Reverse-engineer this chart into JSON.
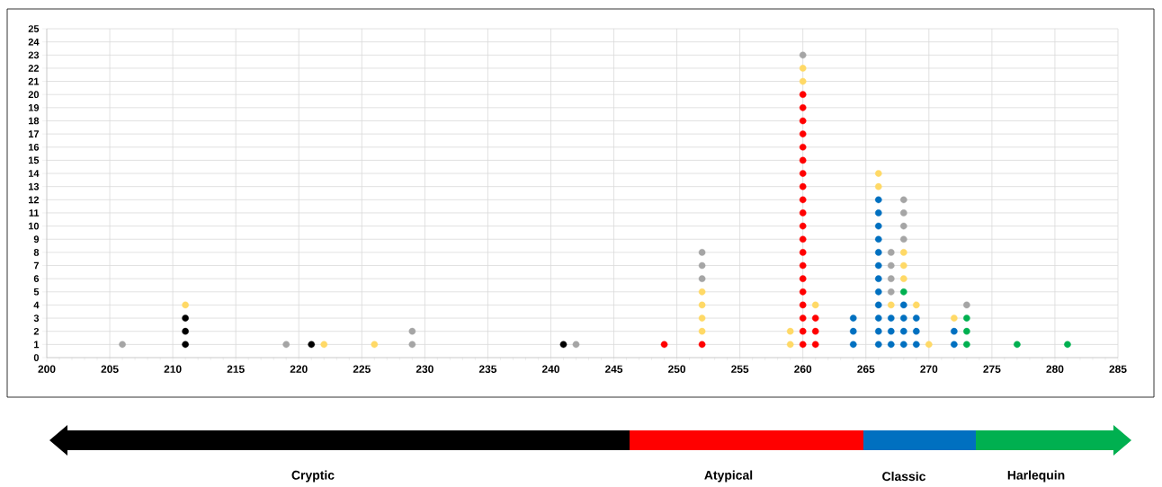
{
  "chart_data": {
    "type": "scatter",
    "marker": "circle",
    "grid": true,
    "xlim": [
      200,
      285
    ],
    "xticks": [
      200,
      205,
      210,
      215,
      220,
      225,
      230,
      235,
      240,
      245,
      250,
      255,
      260,
      265,
      270,
      275,
      280,
      285
    ],
    "ylim": [
      0,
      25
    ],
    "yticks": [
      0,
      1,
      2,
      3,
      4,
      5,
      6,
      7,
      8,
      9,
      10,
      11,
      12,
      13,
      14,
      15,
      16,
      17,
      18,
      19,
      20,
      21,
      22,
      23,
      24,
      25
    ],
    "series": [
      {
        "color": "#000000",
        "x": [
          211,
          211,
          211,
          221,
          241
        ],
        "values": [
          1,
          2,
          3,
          1,
          1
        ]
      },
      {
        "color": "#ff0000",
        "x": [
          249,
          252,
          260,
          260,
          260,
          260,
          260,
          260,
          260,
          260,
          260,
          260,
          260,
          260,
          260,
          260,
          260,
          260,
          260,
          260,
          260,
          260,
          261,
          261,
          261
        ],
        "values": [
          1,
          1,
          1,
          2,
          3,
          4,
          5,
          6,
          7,
          8,
          9,
          10,
          11,
          12,
          13,
          14,
          15,
          16,
          17,
          18,
          19,
          20,
          1,
          2,
          3
        ]
      },
      {
        "color": "#0070c0",
        "x": [
          264,
          264,
          264,
          266,
          266,
          266,
          266,
          266,
          266,
          266,
          266,
          266,
          266,
          266,
          266,
          267,
          267,
          267,
          268,
          268,
          268,
          268,
          269,
          269,
          269,
          272,
          272
        ],
        "values": [
          1,
          2,
          3,
          1,
          2,
          3,
          4,
          5,
          6,
          7,
          8,
          9,
          10,
          11,
          12,
          1,
          2,
          3,
          1,
          2,
          3,
          4,
          1,
          2,
          3,
          1,
          2
        ]
      },
      {
        "color": "#00b050",
        "x": [
          268,
          273,
          273,
          273,
          277,
          281
        ],
        "values": [
          5,
          1,
          2,
          3,
          1,
          1
        ]
      },
      {
        "color": "#ffd966",
        "x": [
          211,
          222,
          226,
          252,
          252,
          252,
          252,
          259,
          259,
          260,
          260,
          261,
          266,
          266,
          267,
          268,
          268,
          268,
          269,
          270,
          272
        ],
        "values": [
          4,
          1,
          1,
          2,
          3,
          4,
          5,
          1,
          2,
          21,
          22,
          4,
          13,
          14,
          4,
          6,
          7,
          8,
          4,
          1,
          3
        ]
      },
      {
        "color": "#a5a5a5",
        "x": [
          206,
          219,
          229,
          229,
          242,
          252,
          252,
          252,
          260,
          267,
          267,
          267,
          267,
          268,
          268,
          268,
          268,
          273
        ],
        "values": [
          1,
          1,
          1,
          2,
          1,
          6,
          7,
          8,
          23,
          5,
          6,
          7,
          8,
          9,
          10,
          11,
          12,
          4
        ]
      }
    ],
    "annotations": [
      "Cryptic",
      "Atypical",
      "Classic",
      "Harlequin"
    ]
  }
}
